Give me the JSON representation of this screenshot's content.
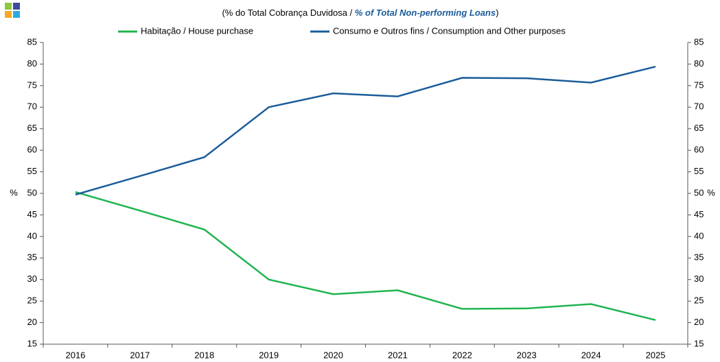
{
  "chart_data": {
    "type": "line",
    "title": {
      "prefix": "(% do Total  Cobrança Duvidosa  / ",
      "emphasis": "% of Total Non-performing Loans",
      "suffix": ")"
    },
    "categories": [
      "2016",
      "2017",
      "2018",
      "2019",
      "2020",
      "2021",
      "2022",
      "2023",
      "2024",
      "2025"
    ],
    "series": [
      {
        "name": "Habitação / House purchase",
        "color": "#1fb44f",
        "values": [
          50.3,
          46,
          41.6,
          30,
          26.6,
          27.5,
          23.2,
          23.3,
          24.3,
          20.6
        ]
      },
      {
        "name": "Consumo e Outros fins / Consumption and Other purposes",
        "color": "#1a5c9a",
        "values": [
          49.7,
          54,
          58.4,
          70,
          73.2,
          72.5,
          76.8,
          76.7,
          75.7,
          79.4
        ]
      }
    ],
    "ylabel": "%",
    "y2label": "%",
    "ylim": [
      15,
      85
    ],
    "yticks": [
      15,
      20,
      25,
      30,
      35,
      40,
      45,
      50,
      55,
      60,
      65,
      70,
      75,
      80,
      85
    ],
    "y2lim": [
      15,
      85
    ],
    "y2ticks": [
      15,
      20,
      25,
      30,
      35,
      40,
      45,
      50,
      55,
      60,
      65,
      70,
      75,
      80,
      85
    ],
    "legend": "top",
    "grid": false
  }
}
